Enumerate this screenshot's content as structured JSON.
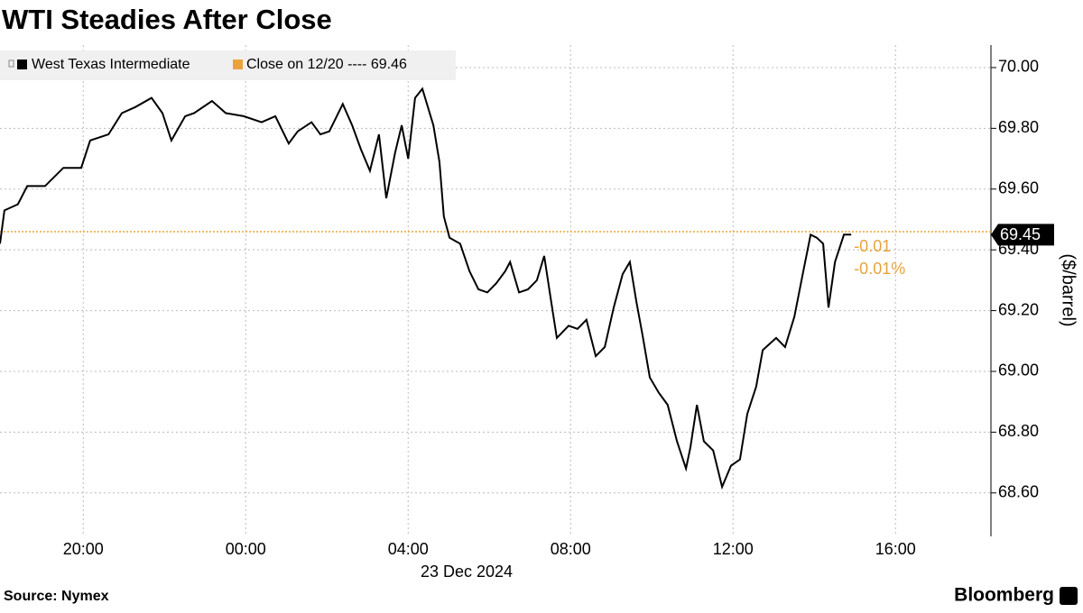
{
  "chart_data": {
    "type": "line",
    "title": "WTI Steadies After Close",
    "y_axis_label": "($/barrel)",
    "x_date_label": "23 Dec 2024",
    "source": "Source: Nymex",
    "brand": "Bloomberg",
    "x": [
      17.95,
      18.06,
      18.39,
      18.62,
      19.06,
      19.51,
      19.95,
      20.17,
      20.62,
      20.95,
      21.28,
      21.68,
      21.95,
      22.17,
      22.51,
      22.73,
      23.17,
      23.51,
      23.95,
      24.39,
      24.73,
      25.06,
      25.28,
      25.62,
      25.84,
      26.06,
      26.39,
      26.62,
      26.84,
      27.06,
      27.28,
      27.46,
      27.68,
      27.84,
      28.0,
      28.17,
      28.35,
      28.62,
      28.77,
      28.88,
      29.02,
      29.28,
      29.51,
      29.73,
      29.95,
      30.17,
      30.39,
      30.51,
      30.73,
      30.95,
      31.17,
      31.35,
      31.51,
      31.66,
      31.95,
      32.17,
      32.39,
      32.62,
      32.84,
      33.06,
      33.28,
      33.46,
      33.62,
      33.77,
      33.95,
      34.17,
      34.39,
      34.62,
      34.84,
      34.95,
      35.11,
      35.28,
      35.51,
      35.73,
      35.95,
      36.17,
      36.35,
      36.57,
      36.73,
      37.06,
      37.28,
      37.51,
      37.73,
      37.91,
      38.06,
      38.22,
      38.35,
      38.51,
      38.73,
      38.91
    ],
    "series": [
      {
        "name": "West Texas Intermediate",
        "color": "#000000",
        "values": [
          69.42,
          69.53,
          69.55,
          69.61,
          69.61,
          69.67,
          69.67,
          69.76,
          69.78,
          69.85,
          69.87,
          69.9,
          69.85,
          69.76,
          69.84,
          69.85,
          69.89,
          69.85,
          69.84,
          69.82,
          69.84,
          69.75,
          69.79,
          69.82,
          69.78,
          69.79,
          69.88,
          69.81,
          69.73,
          69.66,
          69.78,
          69.57,
          69.72,
          69.81,
          69.7,
          69.9,
          69.93,
          69.81,
          69.69,
          69.51,
          69.44,
          69.42,
          69.33,
          69.27,
          69.26,
          69.29,
          69.33,
          69.36,
          69.26,
          69.27,
          69.3,
          69.38,
          69.24,
          69.11,
          69.15,
          69.14,
          69.17,
          69.05,
          69.08,
          69.21,
          69.32,
          69.36,
          69.23,
          69.12,
          68.98,
          68.93,
          68.89,
          68.77,
          68.68,
          68.75,
          68.89,
          68.77,
          68.74,
          68.62,
          68.69,
          68.71,
          68.86,
          68.95,
          69.07,
          69.11,
          69.08,
          69.18,
          69.33,
          69.45,
          69.44,
          69.42,
          69.21,
          69.36,
          69.45,
          69.45
        ]
      }
    ],
    "reference_line": {
      "legend_label": "Close on 12/20 ---- 69.46",
      "value": 69.46,
      "color": "#e8a33d"
    },
    "annotations": [
      "-0.01",
      "-0.01%"
    ],
    "xlim": [
      17.95,
      42.35
    ],
    "xticks": [
      {
        "value": 20,
        "label": "20:00"
      },
      {
        "value": 24,
        "label": "00:00"
      },
      {
        "value": 28,
        "label": "04:00"
      },
      {
        "value": 32,
        "label": "08:00"
      },
      {
        "value": 36,
        "label": "12:00"
      },
      {
        "value": 40,
        "label": "16:00"
      }
    ],
    "ylim": [
      68.457,
      70.074
    ],
    "yticks": [
      {
        "value": 68.6,
        "label": "68.60"
      },
      {
        "value": 68.8,
        "label": "68.80"
      },
      {
        "value": 69.0,
        "label": "69.00"
      },
      {
        "value": 69.2,
        "label": "69.20"
      },
      {
        "value": 69.4,
        "label": "69.40"
      },
      {
        "value": 69.6,
        "label": "69.60"
      },
      {
        "value": 69.8,
        "label": "69.80"
      },
      {
        "value": 70.0,
        "label": "70.00"
      }
    ],
    "grid": true,
    "legend": "top-left"
  }
}
